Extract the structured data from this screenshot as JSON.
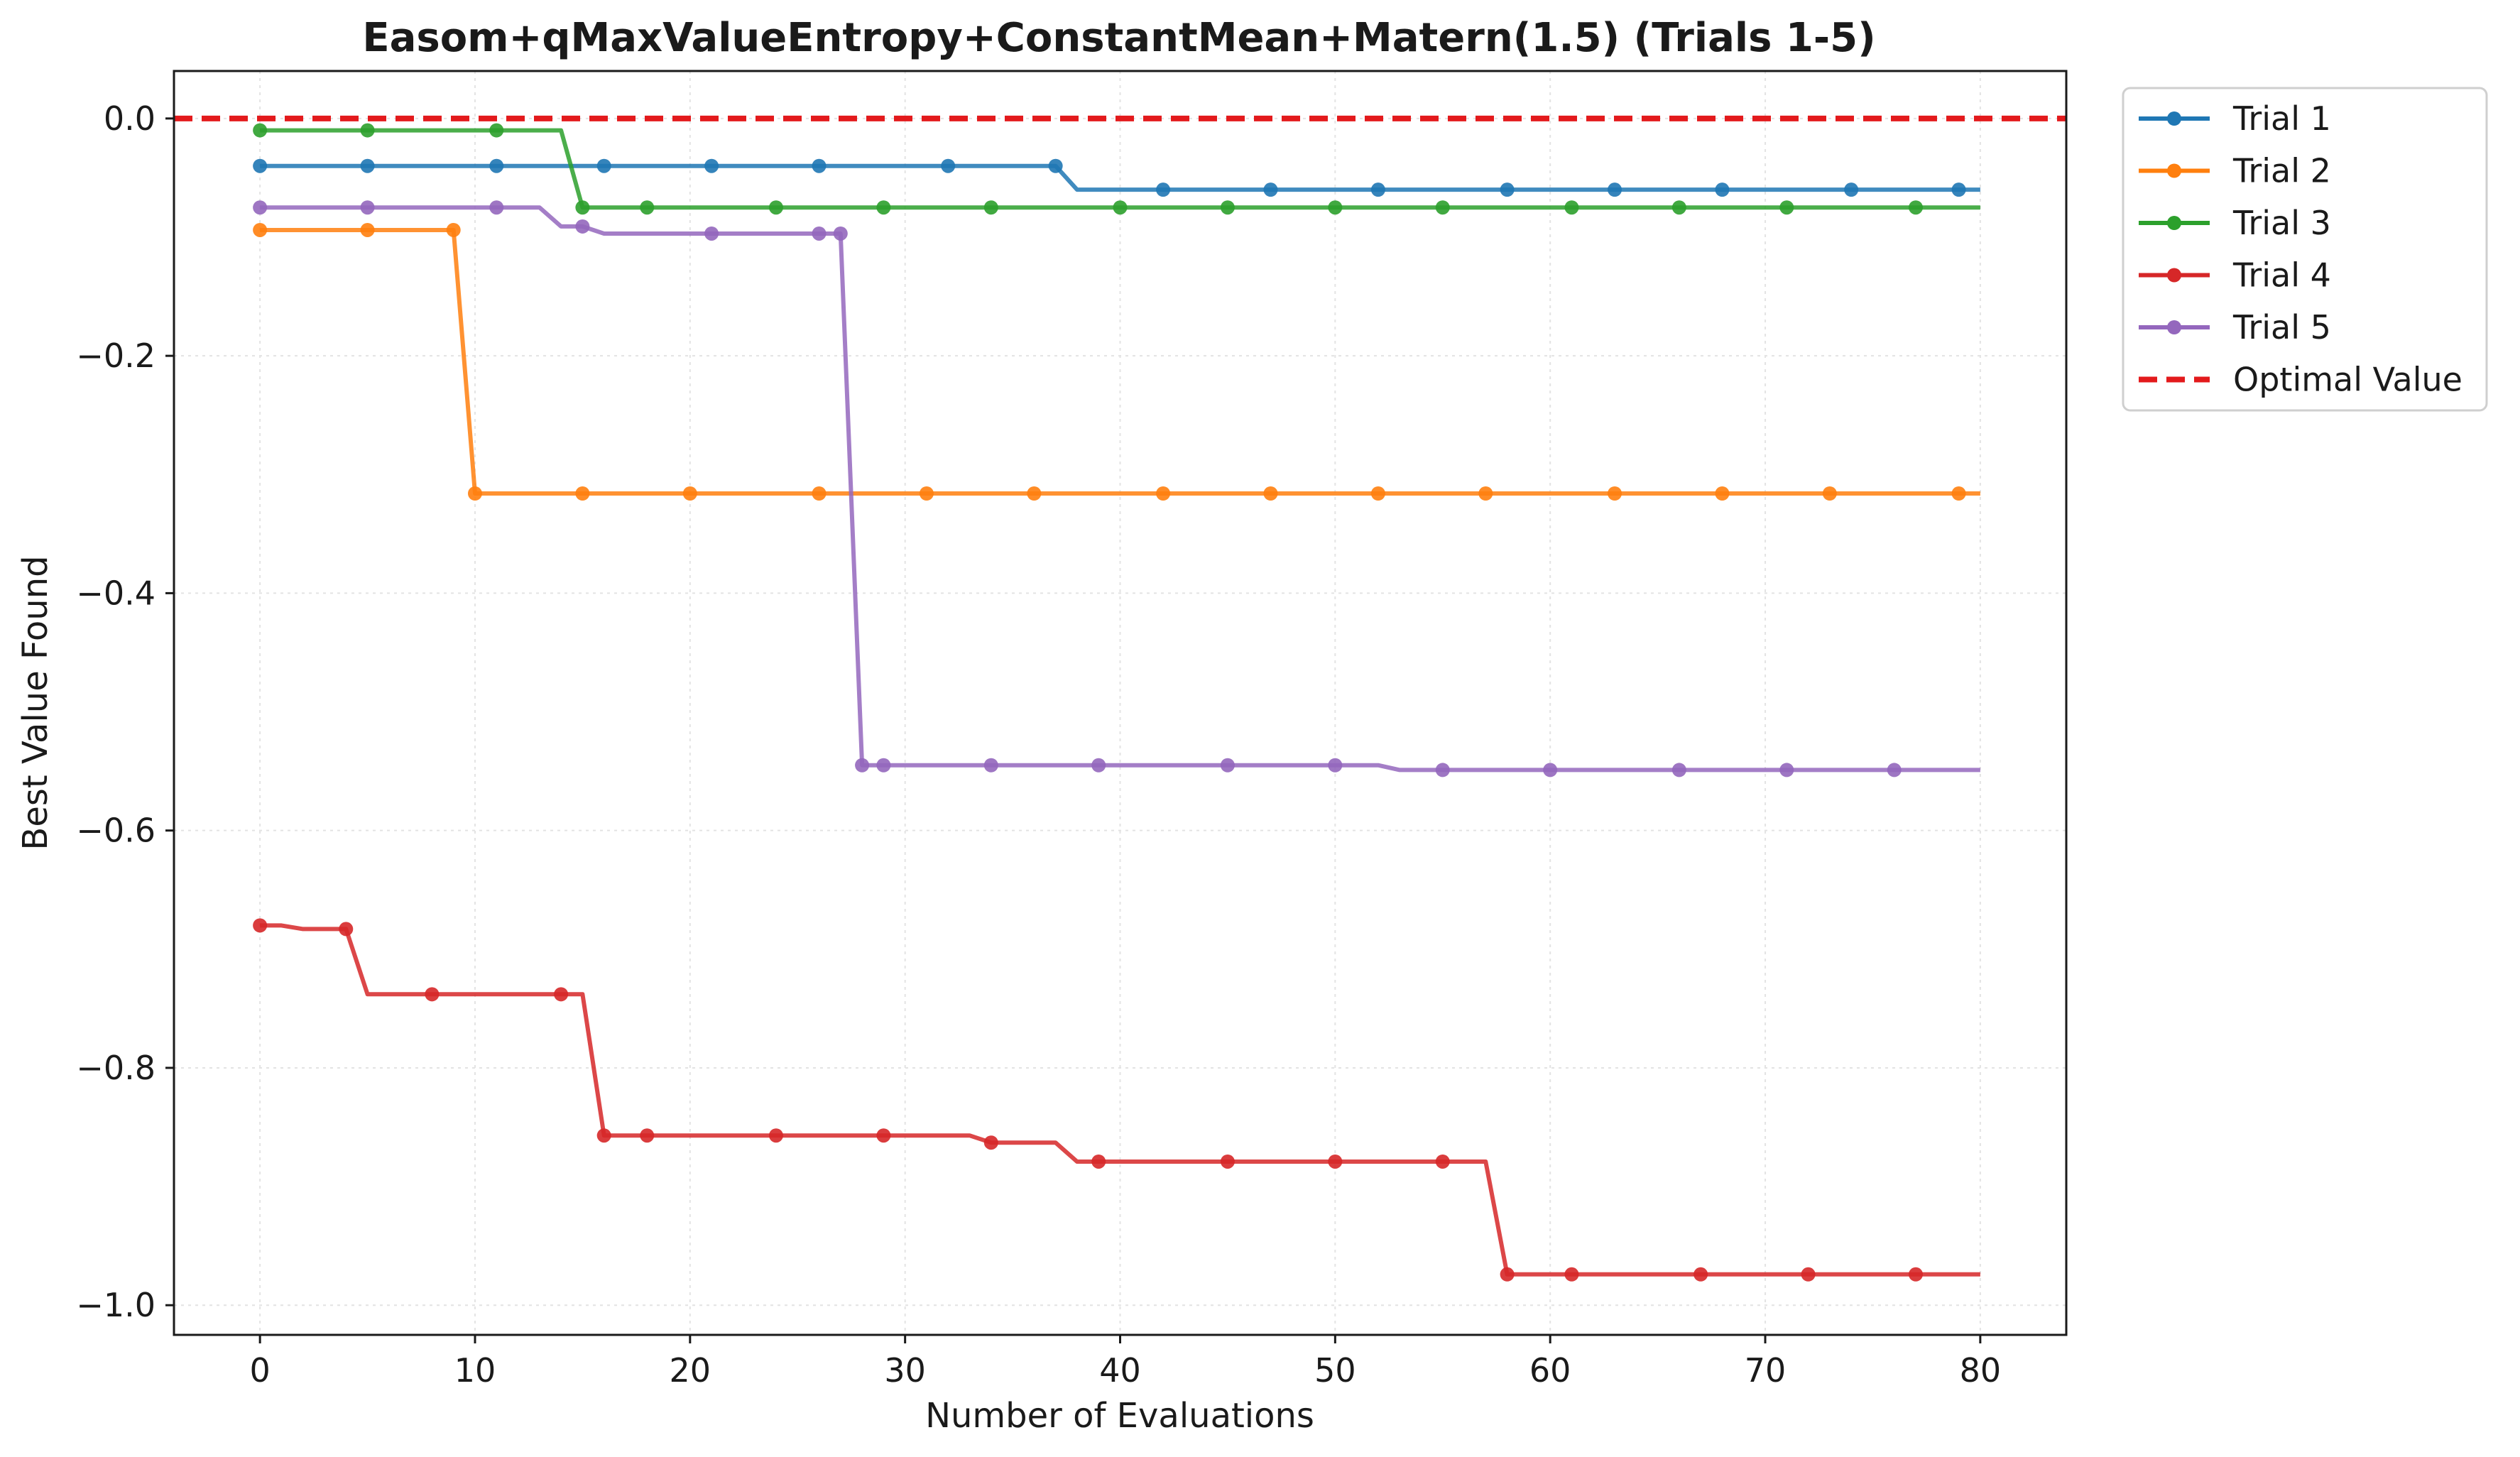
{
  "chart_data": {
    "type": "line",
    "title": "Easom+qMaxValueEntropy+ConstantMean+Matern(1.5) (Trials 1-5)",
    "xlabel": "Number of Evaluations",
    "ylabel": "Best Value Found",
    "xlim": [
      -4,
      84
    ],
    "ylim": [
      -1.025,
      0.04
    ],
    "xticks": [
      0,
      10,
      20,
      30,
      40,
      50,
      60,
      70,
      80
    ],
    "xtick_labels": [
      "0",
      "10",
      "20",
      "30",
      "40",
      "50",
      "60",
      "70",
      "80"
    ],
    "yticks": [
      0.0,
      -0.2,
      -0.4,
      -0.6,
      -0.8,
      -1.0
    ],
    "ytick_labels": [
      "0.0",
      "−0.2",
      "−0.4",
      "−0.6",
      "−0.8",
      "−1.0"
    ],
    "grid": true,
    "legend_position": "outside-top-right",
    "optimal_value": {
      "name": "Optimal Value",
      "y": 0.0,
      "color": "#e31a1c",
      "style": "dashed"
    },
    "series": [
      {
        "name": "Trial 1",
        "color": "#1f77b4",
        "line": [
          [
            0,
            -0.04
          ],
          [
            37,
            -0.04
          ],
          [
            38,
            -0.06
          ],
          [
            80,
            -0.06
          ]
        ],
        "markers": [
          [
            0,
            -0.04
          ],
          [
            5,
            -0.04
          ],
          [
            11,
            -0.04
          ],
          [
            16,
            -0.04
          ],
          [
            21,
            -0.04
          ],
          [
            26,
            -0.04
          ],
          [
            32,
            -0.04
          ],
          [
            37,
            -0.04
          ],
          [
            42,
            -0.06
          ],
          [
            47,
            -0.06
          ],
          [
            52,
            -0.06
          ],
          [
            58,
            -0.06
          ],
          [
            63,
            -0.06
          ],
          [
            68,
            -0.06
          ],
          [
            74,
            -0.06
          ],
          [
            79,
            -0.06
          ]
        ]
      },
      {
        "name": "Trial 2",
        "color": "#ff7f0e",
        "line": [
          [
            0,
            -0.094
          ],
          [
            9,
            -0.094
          ],
          [
            10,
            -0.316
          ],
          [
            80,
            -0.316
          ]
        ],
        "markers": [
          [
            0,
            -0.094
          ],
          [
            5,
            -0.094
          ],
          [
            9,
            -0.094
          ],
          [
            10,
            -0.316
          ],
          [
            15,
            -0.316
          ],
          [
            20,
            -0.316
          ],
          [
            26,
            -0.316
          ],
          [
            31,
            -0.316
          ],
          [
            36,
            -0.316
          ],
          [
            42,
            -0.316
          ],
          [
            47,
            -0.316
          ],
          [
            52,
            -0.316
          ],
          [
            57,
            -0.316
          ],
          [
            63,
            -0.316
          ],
          [
            68,
            -0.316
          ],
          [
            73,
            -0.316
          ],
          [
            79,
            -0.316
          ]
        ]
      },
      {
        "name": "Trial 3",
        "color": "#2ca02c",
        "line": [
          [
            0,
            -0.01
          ],
          [
            14,
            -0.01
          ],
          [
            15,
            -0.075
          ],
          [
            80,
            -0.075
          ]
        ],
        "markers": [
          [
            0,
            -0.01
          ],
          [
            5,
            -0.01
          ],
          [
            11,
            -0.01
          ],
          [
            15,
            -0.075
          ],
          [
            18,
            -0.075
          ],
          [
            24,
            -0.075
          ],
          [
            29,
            -0.075
          ],
          [
            34,
            -0.075
          ],
          [
            40,
            -0.075
          ],
          [
            45,
            -0.075
          ],
          [
            50,
            -0.075
          ],
          [
            55,
            -0.075
          ],
          [
            61,
            -0.075
          ],
          [
            66,
            -0.075
          ],
          [
            71,
            -0.075
          ],
          [
            77,
            -0.075
          ]
        ]
      },
      {
        "name": "Trial 4",
        "color": "#d62728",
        "line": [
          [
            0,
            -0.68
          ],
          [
            1,
            -0.68
          ],
          [
            2,
            -0.683
          ],
          [
            4,
            -0.683
          ],
          [
            5,
            -0.738
          ],
          [
            15,
            -0.738
          ],
          [
            16,
            -0.857
          ],
          [
            33,
            -0.857
          ],
          [
            34,
            -0.863
          ],
          [
            37,
            -0.863
          ],
          [
            38,
            -0.879
          ],
          [
            57,
            -0.879
          ],
          [
            58,
            -0.974
          ],
          [
            80,
            -0.974
          ]
        ],
        "markers": [
          [
            0,
            -0.68
          ],
          [
            4,
            -0.683
          ],
          [
            8,
            -0.738
          ],
          [
            14,
            -0.738
          ],
          [
            16,
            -0.857
          ],
          [
            18,
            -0.857
          ],
          [
            24,
            -0.857
          ],
          [
            29,
            -0.857
          ],
          [
            34,
            -0.863
          ],
          [
            39,
            -0.879
          ],
          [
            45,
            -0.879
          ],
          [
            50,
            -0.879
          ],
          [
            55,
            -0.879
          ],
          [
            58,
            -0.974
          ],
          [
            61,
            -0.974
          ],
          [
            67,
            -0.974
          ],
          [
            72,
            -0.974
          ],
          [
            77,
            -0.974
          ]
        ]
      },
      {
        "name": "Trial 5",
        "color": "#9467bd",
        "line": [
          [
            0,
            -0.075
          ],
          [
            13,
            -0.075
          ],
          [
            14,
            -0.091
          ],
          [
            15,
            -0.091
          ],
          [
            16,
            -0.097
          ],
          [
            27,
            -0.097
          ],
          [
            28,
            -0.545
          ],
          [
            52,
            -0.545
          ],
          [
            53,
            -0.549
          ],
          [
            80,
            -0.549
          ]
        ],
        "markers": [
          [
            0,
            -0.075
          ],
          [
            5,
            -0.075
          ],
          [
            11,
            -0.075
          ],
          [
            15,
            -0.091
          ],
          [
            21,
            -0.097
          ],
          [
            26,
            -0.097
          ],
          [
            27,
            -0.097
          ],
          [
            28,
            -0.545
          ],
          [
            29,
            -0.545
          ],
          [
            34,
            -0.545
          ],
          [
            39,
            -0.545
          ],
          [
            45,
            -0.545
          ],
          [
            50,
            -0.545
          ],
          [
            55,
            -0.549
          ],
          [
            60,
            -0.549
          ],
          [
            66,
            -0.549
          ],
          [
            71,
            -0.549
          ],
          [
            76,
            -0.549
          ]
        ]
      }
    ]
  }
}
